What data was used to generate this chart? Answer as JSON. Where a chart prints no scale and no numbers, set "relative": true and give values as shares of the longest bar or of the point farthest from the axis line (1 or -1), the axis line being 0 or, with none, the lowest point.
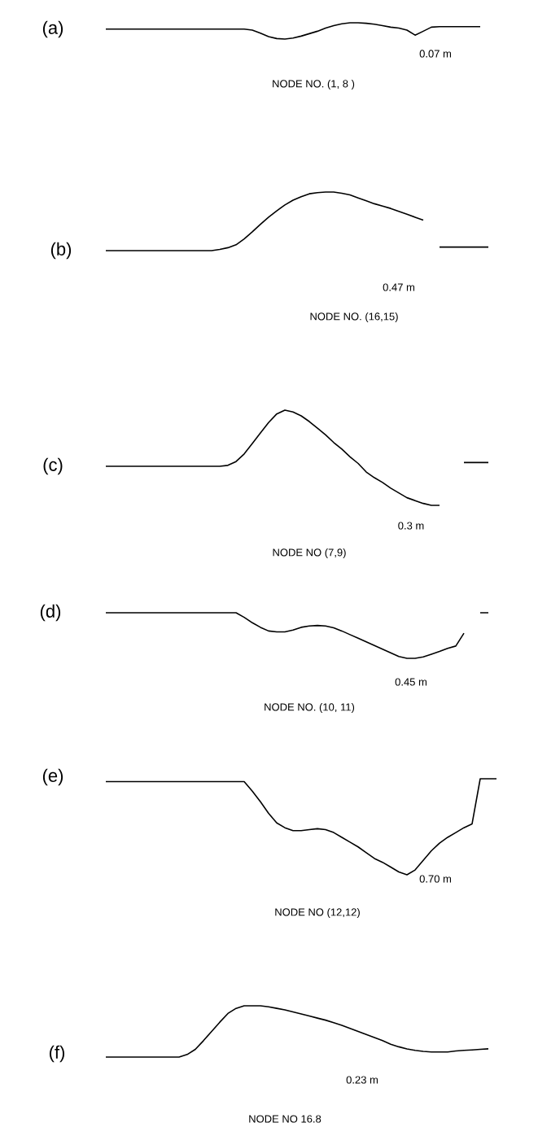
{
  "chart_data": [
    {
      "type": "line",
      "relative": true,
      "title": "(a)",
      "xlabel": "NODE NO. (1, 8 )",
      "annotations": [
        "0.07 m"
      ],
      "categories": [
        null,
        null,
        null,
        null,
        null,
        null,
        null,
        null,
        null,
        null,
        null,
        null,
        null,
        null,
        null,
        null,
        null,
        null,
        null,
        null,
        null,
        null,
        null,
        null,
        null,
        null,
        null,
        null,
        null,
        null,
        null,
        null,
        null,
        null,
        null,
        null,
        null,
        null,
        null,
        null,
        null,
        null,
        null,
        null,
        null,
        null,
        null,
        null,
        null
      ],
      "series": [
        {
          "color": "#000000",
          "values": [
            0.61,
            0.61,
            0.61,
            0.61,
            0.61,
            0.61,
            0.61,
            0.61,
            0.61,
            0.61,
            0.61,
            0.61,
            0.61,
            0.61,
            0.61,
            0.61,
            0.61,
            0.61,
            0.55,
            0.36,
            0.15,
            0.03,
            0,
            0.06,
            0.18,
            0.33,
            0.48,
            0.67,
            0.82,
            0.94,
            1,
            1,
            0.97,
            0.91,
            0.82,
            0.73,
            0.67,
            0.55,
            0.24,
            0.48,
            0.73,
            0.76,
            0.76,
            0.76,
            0.76,
            0.76,
            0.76,
            null,
            null
          ]
        }
      ]
    },
    {
      "type": "line",
      "relative": true,
      "title": "(b)",
      "xlabel": "NODE NO. (16,15)",
      "annotations": [
        "0.47 m"
      ],
      "categories": [
        null,
        null,
        null,
        null,
        null,
        null,
        null,
        null,
        null,
        null,
        null,
        null,
        null,
        null,
        null,
        null,
        null,
        null,
        null,
        null,
        null,
        null,
        null,
        null,
        null,
        null,
        null,
        null,
        null,
        null,
        null,
        null,
        null,
        null,
        null,
        null,
        null,
        null,
        null,
        null,
        null,
        null,
        null,
        null,
        null,
        null,
        null,
        null,
        null
      ],
      "series": [
        {
          "color": "#000000",
          "values": [
            0,
            0,
            0,
            0,
            0,
            0,
            0,
            0,
            0,
            0,
            0,
            0,
            0,
            0,
            0.02,
            0.05,
            0.1,
            0.2,
            0.32,
            0.45,
            0.57,
            0.68,
            0.78,
            0.86,
            0.92,
            0.97,
            0.99,
            1,
            1,
            0.98,
            0.95,
            0.9,
            0.85,
            0.8,
            0.76,
            0.72,
            0.67,
            0.62,
            0.57,
            0.52,
            null,
            0.06,
            0.06,
            0.06,
            0.06,
            0.06,
            0.06,
            0.06,
            null
          ]
        }
      ]
    },
    {
      "type": "line",
      "relative": true,
      "title": "(c)",
      "xlabel": "NODE NO (7,9)",
      "annotations": [
        "0.3 m"
      ],
      "categories": [
        null,
        null,
        null,
        null,
        null,
        null,
        null,
        null,
        null,
        null,
        null,
        null,
        null,
        null,
        null,
        null,
        null,
        null,
        null,
        null,
        null,
        null,
        null,
        null,
        null,
        null,
        null,
        null,
        null,
        null,
        null,
        null,
        null,
        null,
        null,
        null,
        null,
        null,
        null,
        null,
        null,
        null,
        null,
        null,
        null,
        null,
        null,
        null,
        null
      ],
      "series": [
        {
          "color": "#000000",
          "values": [
            0.41,
            0.41,
            0.41,
            0.41,
            0.41,
            0.41,
            0.41,
            0.41,
            0.41,
            0.41,
            0.41,
            0.41,
            0.41,
            0.41,
            0.41,
            0.42,
            0.46,
            0.54,
            0.65,
            0.76,
            0.87,
            0.96,
            1,
            0.98,
            0.94,
            0.88,
            0.81,
            0.74,
            0.66,
            0.59,
            0.51,
            0.44,
            0.35,
            0.29,
            0.24,
            0.18,
            0.13,
            0.08,
            0.05,
            0.02,
            0,
            0,
            null,
            null,
            0.45,
            0.45,
            0.45,
            0.45,
            null
          ]
        }
      ]
    },
    {
      "type": "line",
      "relative": true,
      "title": "(d)",
      "xlabel": "NODE NO. (10, 11)",
      "annotations": [
        "0.45 m"
      ],
      "categories": [
        null,
        null,
        null,
        null,
        null,
        null,
        null,
        null,
        null,
        null,
        null,
        null,
        null,
        null,
        null,
        null,
        null,
        null,
        null,
        null,
        null,
        null,
        null,
        null,
        null,
        null,
        null,
        null,
        null,
        null,
        null,
        null,
        null,
        null,
        null,
        null,
        null,
        null,
        null,
        null,
        null,
        null,
        null,
        null,
        null,
        null,
        null,
        null,
        null
      ],
      "series": [
        {
          "color": "#000000",
          "values": [
            1,
            1,
            1,
            1,
            1,
            1,
            1,
            1,
            1,
            1,
            1,
            1,
            1,
            1,
            1,
            1,
            1,
            0.9,
            0.78,
            0.68,
            0.6,
            0.58,
            0.58,
            0.62,
            0.68,
            0.71,
            0.72,
            0.71,
            0.67,
            0.6,
            0.52,
            0.44,
            0.36,
            0.28,
            0.2,
            0.12,
            0.04,
            0,
            0,
            0.03,
            0.09,
            0.15,
            0.22,
            0.27,
            0.55,
            null,
            1,
            1,
            null
          ]
        }
      ]
    },
    {
      "type": "line",
      "relative": true,
      "title": "(e)",
      "xlabel": "NODE NO (12,12)",
      "annotations": [
        "0.70 m"
      ],
      "categories": [
        null,
        null,
        null,
        null,
        null,
        null,
        null,
        null,
        null,
        null,
        null,
        null,
        null,
        null,
        null,
        null,
        null,
        null,
        null,
        null,
        null,
        null,
        null,
        null,
        null,
        null,
        null,
        null,
        null,
        null,
        null,
        null,
        null,
        null,
        null,
        null,
        null,
        null,
        null,
        null,
        null,
        null,
        null,
        null,
        null,
        null,
        null,
        null,
        null
      ],
      "series": [
        {
          "color": "#000000",
          "values": [
            0.97,
            0.97,
            0.97,
            0.97,
            0.97,
            0.97,
            0.97,
            0.97,
            0.97,
            0.97,
            0.97,
            0.97,
            0.97,
            0.97,
            0.97,
            0.97,
            0.97,
            0.97,
            0.87,
            0.76,
            0.64,
            0.54,
            0.49,
            0.46,
            0.46,
            0.47,
            0.48,
            0.47,
            0.44,
            0.39,
            0.34,
            0.29,
            0.23,
            0.17,
            0.13,
            0.08,
            0.03,
            0,
            0.05,
            0.15,
            0.25,
            0.33,
            0.39,
            0.44,
            0.49,
            0.53,
            1,
            1,
            1
          ]
        }
      ]
    },
    {
      "type": "line",
      "relative": true,
      "title": "(f)",
      "xlabel": "NODE NO 16.8",
      "annotations": [
        "0.23 m"
      ],
      "categories": [
        null,
        null,
        null,
        null,
        null,
        null,
        null,
        null,
        null,
        null,
        null,
        null,
        null,
        null,
        null,
        null,
        null,
        null,
        null,
        null,
        null,
        null,
        null,
        null,
        null,
        null,
        null,
        null,
        null,
        null,
        null,
        null,
        null,
        null,
        null,
        null,
        null,
        null,
        null,
        null,
        null,
        null,
        null,
        null,
        null,
        null,
        null,
        null,
        null
      ],
      "series": [
        {
          "color": "#000000",
          "values": [
            0,
            0,
            0,
            0,
            0,
            0,
            0,
            0,
            0,
            0,
            0.05,
            0.15,
            0.32,
            0.5,
            0.68,
            0.85,
            0.95,
            1,
            1,
            1,
            0.98,
            0.95,
            0.92,
            0.88,
            0.84,
            0.8,
            0.76,
            0.72,
            0.67,
            0.62,
            0.56,
            0.5,
            0.44,
            0.38,
            0.32,
            0.25,
            0.2,
            0.16,
            0.13,
            0.11,
            0.1,
            0.1,
            0.1,
            0.12,
            0.13,
            0.14,
            0.15,
            0.16,
            null
          ]
        }
      ]
    }
  ]
}
